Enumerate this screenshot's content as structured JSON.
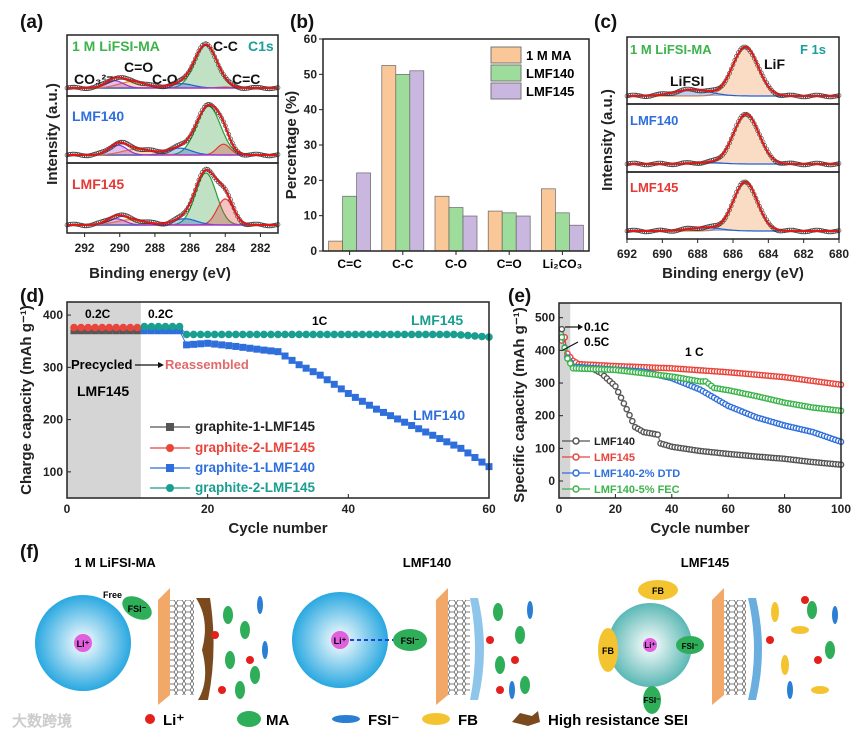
{
  "panel_labels": {
    "a": "(a)",
    "b": "(b)",
    "c": "(c)",
    "d": "(d)",
    "e": "(e)",
    "f": "(f)"
  },
  "chart_data": [
    {
      "id": "a",
      "type": "line",
      "title": "C1s XPS",
      "xlabel": "Binding energy (eV)",
      "ylabel": "Intensity (a.u.)",
      "xlim": [
        293,
        281
      ],
      "xticks": [
        "292",
        "290",
        "288",
        "286",
        "284",
        "282"
      ],
      "corner_label": "C1s",
      "peak_labels": {
        "co3": "CO₃²⁻",
        "co": "C=O",
        "c_o": "C-O",
        "cc": "C-C",
        "c_c": "C=C"
      },
      "panels": [
        {
          "name": "1 M LiFSI-MA",
          "color": "#3cb44b",
          "peaks": [
            {
              "label": "C-C",
              "center": 285.1,
              "fwhm": 1.5,
              "amp": 1.0,
              "color": "#2e9c3a"
            },
            {
              "label": "C=C",
              "center": 284.0,
              "fwhm": 1.0,
              "amp": 0.02,
              "color": "#e53935"
            },
            {
              "label": "C-O",
              "center": 286.5,
              "fwhm": 1.6,
              "amp": 0.1,
              "color": "#1e5fd6"
            },
            {
              "label": "C=O",
              "center": 289.3,
              "fwhm": 1.8,
              "amp": 0.15,
              "color": "#f28a1e"
            },
            {
              "label": "CO3",
              "center": 290.3,
              "fwhm": 1.2,
              "amp": 0.17,
              "color": "#9b30d9"
            }
          ]
        },
        {
          "name": "LMF140",
          "color": "#2f6fdc",
          "peaks": [
            {
              "label": "C-C",
              "center": 284.95,
              "fwhm": 1.6,
              "amp": 1.0,
              "color": "#2e9c3a"
            },
            {
              "label": "C=C",
              "center": 284.1,
              "fwhm": 0.9,
              "amp": 0.22,
              "color": "#e53935"
            },
            {
              "label": "C-O",
              "center": 286.6,
              "fwhm": 1.6,
              "amp": 0.14,
              "color": "#1e5fd6"
            },
            {
              "label": "C=O",
              "center": 289.0,
              "fwhm": 2.0,
              "amp": 0.12,
              "color": "#f28a1e"
            },
            {
              "label": "CO3",
              "center": 290.1,
              "fwhm": 1.2,
              "amp": 0.2,
              "color": "#9b30d9"
            }
          ]
        },
        {
          "name": "LMF145",
          "color": "#e53935",
          "peaks": [
            {
              "label": "C-C",
              "center": 285.1,
              "fwhm": 1.4,
              "amp": 1.0,
              "color": "#2e9c3a"
            },
            {
              "label": "C=C",
              "center": 284.0,
              "fwhm": 1.1,
              "amp": 0.5,
              "color": "#e53935"
            },
            {
              "label": "C-O",
              "center": 286.3,
              "fwhm": 1.6,
              "amp": 0.12,
              "color": "#1e5fd6"
            },
            {
              "label": "C=O",
              "center": 289.4,
              "fwhm": 2.0,
              "amp": 0.1,
              "color": "#f28a1e"
            },
            {
              "label": "CO3",
              "center": 290.2,
              "fwhm": 1.2,
              "amp": 0.12,
              "color": "#9b30d9"
            }
          ]
        }
      ]
    },
    {
      "id": "b",
      "type": "bar",
      "xlabel": "",
      "ylabel": "Percentage (%)",
      "ylim": [
        0,
        60
      ],
      "yticks": [
        "0",
        "10",
        "20",
        "30",
        "40",
        "50",
        "60"
      ],
      "categories": [
        "C=C",
        "C-C",
        "C-O",
        "C=O",
        "Li₂CO₃"
      ],
      "legend_position": "top-right",
      "series": [
        {
          "name": "1 M MA",
          "color": "#fac898",
          "values": [
            2.8,
            52.5,
            15.5,
            11.3,
            17.6
          ]
        },
        {
          "name": "LMF140",
          "color": "#9edc9c",
          "values": [
            15.5,
            50.0,
            12.3,
            10.8,
            10.8
          ]
        },
        {
          "name": "LMF145",
          "color": "#c9b7df",
          "values": [
            22.1,
            51.0,
            9.9,
            9.9,
            7.3
          ]
        }
      ]
    },
    {
      "id": "c",
      "type": "line",
      "title": "F 1s XPS",
      "xlabel": "Binding energy (eV)",
      "ylabel": "Intensity (a.u.)",
      "xlim": [
        692,
        680
      ],
      "xticks": [
        "692",
        "690",
        "688",
        "686",
        "684",
        "682",
        "680"
      ],
      "corner_label": "F 1s",
      "peak_labels": {
        "lif": "LiF",
        "lifsi": "LiFSI"
      },
      "panels": [
        {
          "name": "1 M LiFSI-MA",
          "color": "#3cb44b",
          "peaks": [
            {
              "label": "LiF",
              "center": 685.3,
              "fwhm": 1.7,
              "amp": 1.0,
              "color": "#f08a3c"
            },
            {
              "label": "LiFSI",
              "center": 688.3,
              "fwhm": 2.4,
              "amp": 0.13,
              "color": "#1e5fd6"
            }
          ]
        },
        {
          "name": "LMF140",
          "color": "#2f6fdc",
          "peaks": [
            {
              "label": "LiF",
              "center": 685.25,
              "fwhm": 1.7,
              "amp": 1.0,
              "color": "#f08a3c"
            },
            {
              "label": "LiFSI",
              "center": 687.5,
              "fwhm": 2.0,
              "amp": 0.03,
              "color": "#1e5fd6"
            }
          ]
        },
        {
          "name": "LMF145",
          "color": "#e53935",
          "peaks": [
            {
              "label": "LiF",
              "center": 685.3,
              "fwhm": 1.6,
              "amp": 1.0,
              "color": "#f08a3c"
            },
            {
              "label": "LiFSI",
              "center": 687.6,
              "fwhm": 2.2,
              "amp": 0.07,
              "color": "#1e5fd6"
            }
          ]
        }
      ]
    },
    {
      "id": "d",
      "type": "scatter",
      "xlabel": "Cycle number",
      "ylabel": "Charge capacity (mAh g⁻¹)",
      "xlim": [
        0,
        60
      ],
      "ylim": [
        50,
        425
      ],
      "xticks": [
        "0",
        "20",
        "40",
        "60"
      ],
      "yticks": [
        "100",
        "200",
        "300",
        "400"
      ],
      "shaded_cycles": [
        0,
        10.5
      ],
      "annotations": {
        "rate1": "0.2C",
        "rate2": "0.2C",
        "rate3": "1C",
        "lmf145": "LMF145",
        "lmf140": "LMF140",
        "precycled": "Precycled",
        "reassembled": "Reassembled",
        "precycled_electrolyte": "LMF145"
      },
      "legend_position": "bottom-center",
      "series": [
        {
          "name": "graphite-1-LMF145",
          "color": "#555555",
          "marker": "square",
          "points": [
            [
              1,
              370
            ],
            [
              10,
              370
            ]
          ]
        },
        {
          "name": "graphite-2-LMF145",
          "color": "#e8453c",
          "marker": "circle",
          "points": [
            [
              1,
              376
            ],
            [
              10,
              376
            ]
          ]
        },
        {
          "name": "graphite-1-LMF140",
          "color": "#2f6fdc",
          "marker": "square",
          "points": [
            [
              11,
              370
            ],
            [
              16,
              370
            ],
            [
              17,
              343
            ],
            [
              20,
              346
            ],
            [
              24,
              340
            ],
            [
              28,
              333
            ],
            [
              30,
              330
            ],
            [
              33,
              305
            ],
            [
              36,
              285
            ],
            [
              40,
              250
            ],
            [
              44,
              220
            ],
            [
              48,
              195
            ],
            [
              52,
              170
            ],
            [
              56,
              145
            ],
            [
              60,
              110
            ]
          ]
        },
        {
          "name": "graphite-2-LMF145",
          "color": "#1a9e8f",
          "marker": "circle",
          "points": [
            [
              11,
              378
            ],
            [
              16,
              378
            ],
            [
              17,
              363
            ],
            [
              40,
              363
            ],
            [
              55,
              363
            ],
            [
              60,
              358
            ]
          ]
        }
      ]
    },
    {
      "id": "e",
      "type": "scatter",
      "xlabel": "Cycle number",
      "ylabel": "Specific capacity (mAh g⁻¹)",
      "xlim": [
        0,
        100
      ],
      "ylim": [
        -52,
        545
      ],
      "xticks": [
        "0",
        "20",
        "40",
        "60",
        "80",
        "100"
      ],
      "yticks": [
        "0",
        "100",
        "200",
        "300",
        "400",
        "500"
      ],
      "shaded_cycles": [
        0,
        4
      ],
      "annotations": {
        "c01": "0.1C",
        "c05": "0.5C",
        "c1": "1 C"
      },
      "legend_position": "bottom-left",
      "series": [
        {
          "name": "LMF140",
          "color": "#555555",
          "points": [
            [
              1,
              465
            ],
            [
              2,
              440
            ],
            [
              3,
              380
            ],
            [
              5,
              350
            ],
            [
              12,
              344
            ],
            [
              15,
              330
            ],
            [
              20,
              290
            ],
            [
              24,
              220
            ],
            [
              27,
              165
            ],
            [
              30,
              150
            ],
            [
              35,
              142
            ],
            [
              36,
              115
            ],
            [
              40,
              105
            ],
            [
              50,
              92
            ],
            [
              60,
              83
            ],
            [
              70,
              75
            ],
            [
              80,
              68
            ],
            [
              90,
              58
            ],
            [
              100,
              50
            ]
          ]
        },
        {
          "name": "LMF145",
          "color": "#e8453c",
          "points": [
            [
              1,
              430
            ],
            [
              2,
              440
            ],
            [
              3,
              390
            ],
            [
              5,
              368
            ],
            [
              7,
              358
            ],
            [
              20,
              352
            ],
            [
              40,
              345
            ],
            [
              60,
              333
            ],
            [
              80,
              318
            ],
            [
              100,
              295
            ]
          ]
        },
        {
          "name": "LMF140-2% DTD",
          "color": "#2f6fdc",
          "points": [
            [
              1,
              440
            ],
            [
              3,
              378
            ],
            [
              5,
              350
            ],
            [
              30,
              335
            ],
            [
              40,
              315
            ],
            [
              50,
              280
            ],
            [
              60,
              230
            ],
            [
              70,
              195
            ],
            [
              80,
              170
            ],
            [
              90,
              150
            ],
            [
              100,
              120
            ]
          ]
        },
        {
          "name": "LMF140-5% FEC",
          "color": "#3cb44b",
          "points": [
            [
              1,
              440
            ],
            [
              3,
              375
            ],
            [
              5,
              345
            ],
            [
              20,
              340
            ],
            [
              40,
              320
            ],
            [
              50,
              305
            ],
            [
              52,
              305
            ],
            [
              55,
              285
            ],
            [
              60,
              278
            ],
            [
              70,
              260
            ],
            [
              80,
              240
            ],
            [
              90,
              225
            ],
            [
              100,
              215
            ]
          ]
        }
      ]
    }
  ],
  "schematic": {
    "titles": [
      "1 M LiFSI-MA",
      "LMF140",
      "LMF145"
    ],
    "free_label": "Free",
    "fsi": "FSI⁻",
    "li": "Li⁺",
    "fb": "FB",
    "legend": [
      {
        "label": "Li⁺",
        "color": "#e3201b"
      },
      {
        "label": "MA",
        "color": "#2fae5a"
      },
      {
        "label": "FSI⁻",
        "color": "#2a7fd4"
      },
      {
        "label": "FB",
        "color": "#f4c430"
      },
      {
        "label": "High resistance SEI",
        "color": "#7a4a1e"
      }
    ],
    "watermark": "大数跨境"
  }
}
